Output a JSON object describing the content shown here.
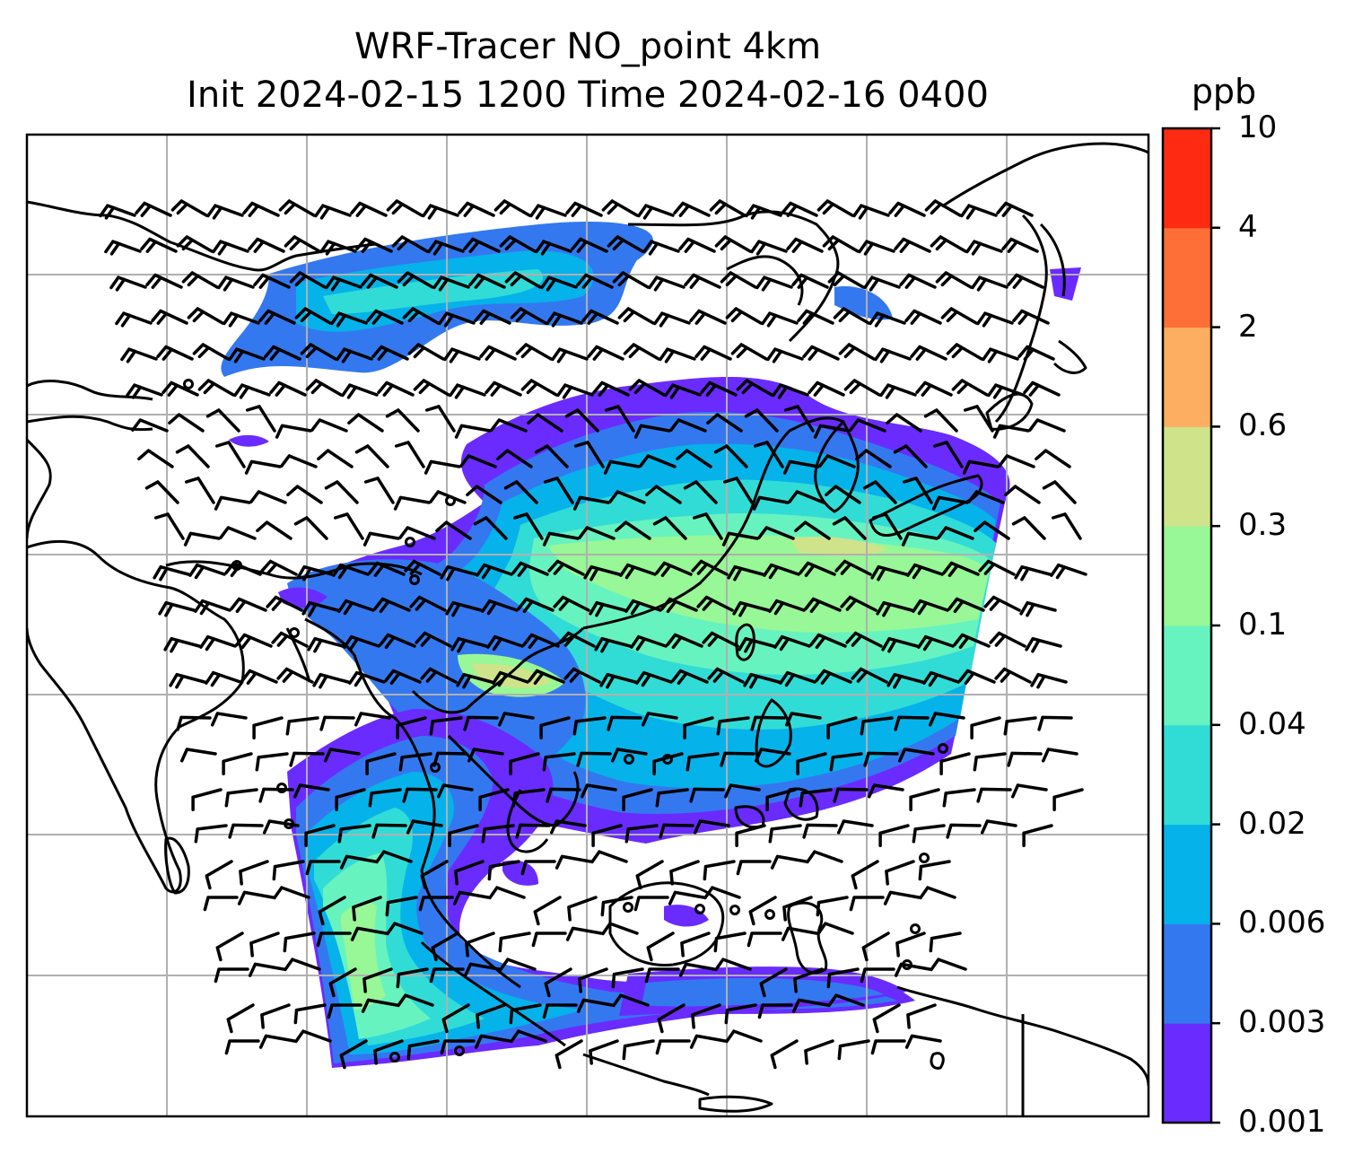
{
  "title_line1": "WRF-Tracer NO_point 4km",
  "title_line2": "Init 2024-02-15 1200 Time 2024-02-16 0400",
  "colorbar": {
    "units": "ppb",
    "levels": [
      "0.001",
      "0.003",
      "0.006",
      "0.02",
      "0.04",
      "0.1",
      "0.3",
      "0.6",
      "2",
      "4",
      "10"
    ],
    "colors": [
      "#6a2bff",
      "#3478f0",
      "#06b2ea",
      "#32dcd6",
      "#67f3c0",
      "#98f796",
      "#cfe38a",
      "#fdae60",
      "#fe6f38",
      "#fe2a12"
    ]
  },
  "map": {
    "type": "filled-contour with wind barbs",
    "field": "NO_point tracer concentration",
    "gridlines": true,
    "coastlines": true
  }
}
